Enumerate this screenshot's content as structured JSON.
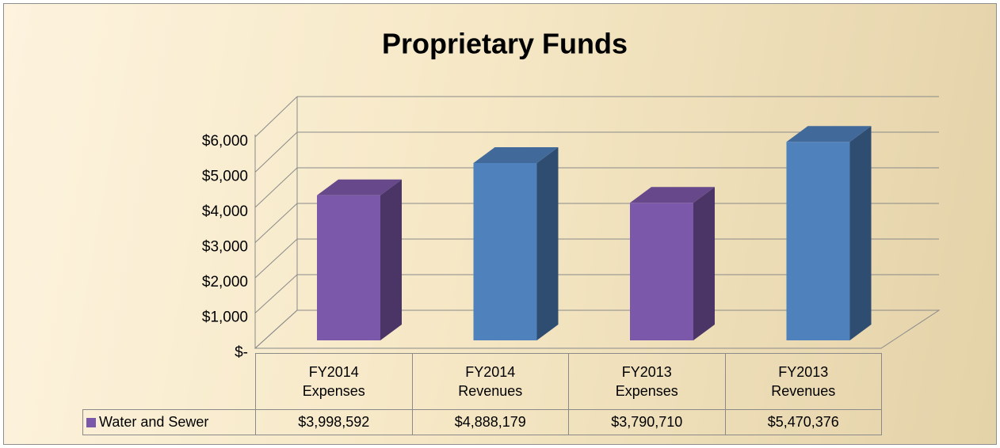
{
  "chart_data": {
    "type": "bar3d",
    "title": "Proprietary Funds",
    "categories": [
      "FY2014 Expenses",
      "FY2014 Revenues",
      "FY2013 Expenses",
      "FY2013 Revenues"
    ],
    "series": [
      {
        "name": "Water and Sewer",
        "color": "#7c58aa",
        "values": [
          3998.592,
          4888.179,
          3790.71,
          5470.376
        ],
        "value_labels": [
          "$3,998,592",
          "$4,888,179",
          "$3,790,710",
          "$5,470,376"
        ]
      }
    ],
    "bar_colors": [
      "#7c58aa",
      "#4f81bd",
      "#7c58aa",
      "#4f81bd"
    ],
    "ylim": [
      0,
      6000
    ],
    "yticks": [
      {
        "value": 0,
        "label": "$-"
      },
      {
        "value": 1000,
        "label": "$1,000"
      },
      {
        "value": 2000,
        "label": "$2,000"
      },
      {
        "value": 3000,
        "label": "$3,000"
      },
      {
        "value": 4000,
        "label": "$4,000"
      },
      {
        "value": 5000,
        "label": "$5,000"
      },
      {
        "value": 6000,
        "label": "$6,000"
      }
    ],
    "grid": true,
    "legend": "table"
  }
}
